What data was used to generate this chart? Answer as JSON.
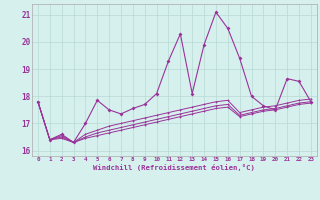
{
  "main_line": [
    17.8,
    16.4,
    16.6,
    16.3,
    17.0,
    17.85,
    17.5,
    17.35,
    17.55,
    17.7,
    18.1,
    19.3,
    20.3,
    18.1,
    19.9,
    21.1,
    20.5,
    19.4,
    18.0,
    17.65,
    17.5,
    18.65,
    18.55,
    17.8
  ],
  "line2": [
    17.8,
    16.4,
    16.55,
    16.3,
    16.6,
    16.75,
    16.9,
    17.0,
    17.1,
    17.2,
    17.3,
    17.4,
    17.5,
    17.6,
    17.7,
    17.8,
    17.85,
    17.4,
    17.5,
    17.6,
    17.65,
    17.75,
    17.85,
    17.9
  ],
  "line3": [
    17.8,
    16.4,
    16.5,
    16.3,
    16.5,
    16.65,
    16.75,
    16.85,
    16.95,
    17.05,
    17.15,
    17.25,
    17.35,
    17.45,
    17.55,
    17.65,
    17.7,
    17.3,
    17.4,
    17.5,
    17.55,
    17.65,
    17.75,
    17.8
  ],
  "line4": [
    17.8,
    16.4,
    16.45,
    16.3,
    16.45,
    16.55,
    16.65,
    16.75,
    16.85,
    16.95,
    17.05,
    17.15,
    17.25,
    17.35,
    17.45,
    17.55,
    17.6,
    17.25,
    17.35,
    17.45,
    17.5,
    17.6,
    17.7,
    17.75
  ],
  "x": [
    0,
    1,
    2,
    3,
    4,
    5,
    6,
    7,
    8,
    9,
    10,
    11,
    12,
    13,
    14,
    15,
    16,
    17,
    18,
    19,
    20,
    21,
    22,
    23
  ],
  "color": "#993399",
  "bg_color": "#d6f0ee",
  "grid_color": "#b8d8d4",
  "ylim": [
    15.8,
    21.4
  ],
  "yticks": [
    16,
    17,
    18,
    19,
    20,
    21
  ],
  "xlabel": "Windchill (Refroidissement éolien,°C)",
  "title": ""
}
